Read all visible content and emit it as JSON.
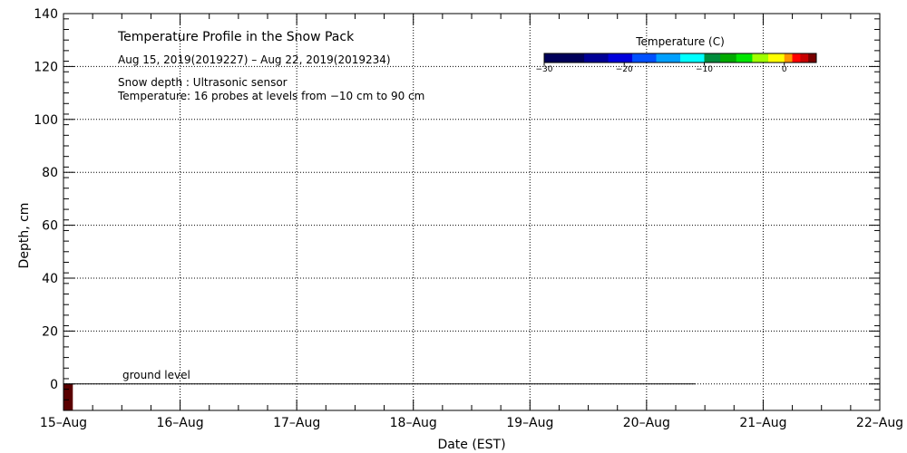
{
  "chart_data": {
    "type": "heatmap",
    "title": "Temperature Profile in the Snow Pack",
    "date_range": "Aug 15, 2019(2019227) – Aug 22, 2019(2019234)",
    "notes": [
      "Snow depth : Ultrasonic sensor",
      "Temperature: 16 probes at levels from −10 cm to 90 cm"
    ],
    "xlabel": "Date (EST)",
    "ylabel": "Depth, cm",
    "x_categories": [
      "15–Aug",
      "16–Aug",
      "17–Aug",
      "18–Aug",
      "19–Aug",
      "20–Aug",
      "21–Aug",
      "22–Aug"
    ],
    "ylim": [
      -10,
      140
    ],
    "y_major_ticks": [
      0,
      20,
      40,
      60,
      80,
      100,
      120,
      140
    ],
    "y_tick_labels": [
      "0",
      "20",
      "40",
      "60",
      "80",
      "100",
      "120",
      "140"
    ],
    "y_minor_step": 4,
    "x_minor_per_day": 4,
    "grid": true,
    "ground_level": {
      "label": "ground level",
      "depth": 0,
      "end_day": 5.42
    },
    "cells": [
      {
        "day_start": 0.0,
        "day_end": 0.08,
        "depth_bottom": -10,
        "depth_top": 0,
        "color": "#5a0000"
      }
    ],
    "colorbar": {
      "title": "Temperature (C)",
      "ticks": [
        -30,
        -20,
        -10,
        0
      ],
      "tick_labels": [
        "−30",
        "−20",
        "−10",
        "0"
      ],
      "range": [
        -30,
        4
      ],
      "legend_position": "top-right",
      "segments": [
        {
          "from": -30,
          "to": -25,
          "color": "#00005a"
        },
        {
          "from": -25,
          "to": -22,
          "color": "#000096"
        },
        {
          "from": -22,
          "to": -19,
          "color": "#0000dc"
        },
        {
          "from": -19,
          "to": -16,
          "color": "#0050ff"
        },
        {
          "from": -16,
          "to": -13,
          "color": "#00a0ff"
        },
        {
          "from": -13,
          "to": -10,
          "color": "#00ffff"
        },
        {
          "from": -10,
          "to": -8,
          "color": "#008c3c"
        },
        {
          "from": -8,
          "to": -6,
          "color": "#00aa00"
        },
        {
          "from": -6,
          "to": -4,
          "color": "#00e600"
        },
        {
          "from": -4,
          "to": -2,
          "color": "#a0ff00"
        },
        {
          "from": -2,
          "to": 0,
          "color": "#ffff00"
        },
        {
          "from": 0,
          "to": 1,
          "color": "#ff9600"
        },
        {
          "from": 1,
          "to": 2,
          "color": "#ff0000"
        },
        {
          "from": 2,
          "to": 3,
          "color": "#c80000"
        },
        {
          "from": 3,
          "to": 4,
          "color": "#780000"
        }
      ]
    }
  }
}
